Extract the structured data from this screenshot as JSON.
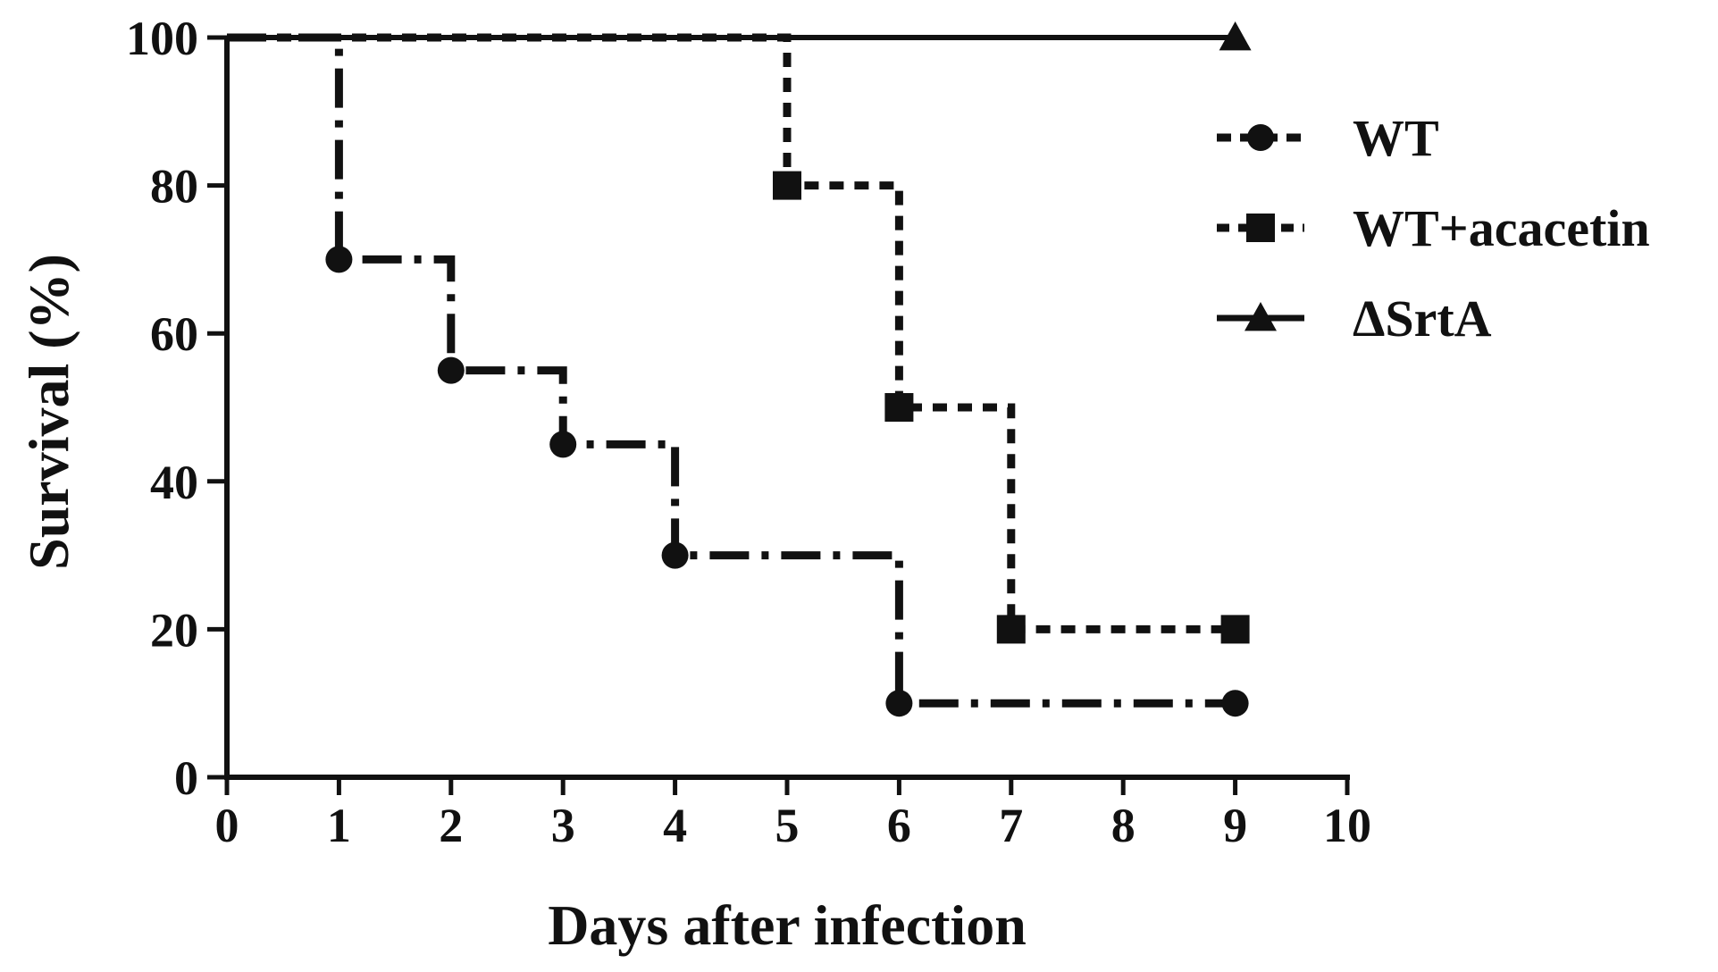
{
  "chart_data": {
    "type": "line",
    "subtype": "survival-step",
    "title": "",
    "xlabel": "Days after infection",
    "ylabel": "Survival (%)",
    "xlim": [
      0,
      10
    ],
    "ylim": [
      0,
      100
    ],
    "xticks": [
      0,
      1,
      2,
      3,
      4,
      5,
      6,
      7,
      8,
      9,
      10
    ],
    "yticks": [
      0,
      20,
      40,
      60,
      80,
      100
    ],
    "grid": false,
    "legend_position": "top-right",
    "series": [
      {
        "name": "WT",
        "marker": "circle",
        "line_style": "long-dash-dot",
        "color": "#111111",
        "steps": [
          [
            0,
            100
          ],
          [
            1,
            70
          ],
          [
            2,
            55
          ],
          [
            3,
            45
          ],
          [
            4,
            30
          ],
          [
            6,
            10
          ],
          [
            9,
            10
          ]
        ],
        "markers": [
          [
            1,
            70
          ],
          [
            2,
            55
          ],
          [
            3,
            45
          ],
          [
            4,
            30
          ],
          [
            6,
            10
          ],
          [
            9,
            10
          ]
        ]
      },
      {
        "name": "WT+acacetin",
        "marker": "square",
        "line_style": "short-dash",
        "color": "#111111",
        "steps": [
          [
            0,
            100
          ],
          [
            5,
            80
          ],
          [
            6,
            50
          ],
          [
            7,
            20
          ],
          [
            9,
            20
          ]
        ],
        "markers": [
          [
            5,
            80
          ],
          [
            6,
            50
          ],
          [
            7,
            20
          ],
          [
            9,
            20
          ]
        ]
      },
      {
        "name": "ΔSrtA",
        "marker": "triangle",
        "line_style": "solid",
        "color": "#111111",
        "steps": [
          [
            0,
            100
          ],
          [
            9,
            100
          ]
        ],
        "markers": [
          [
            9,
            100
          ]
        ]
      }
    ]
  }
}
